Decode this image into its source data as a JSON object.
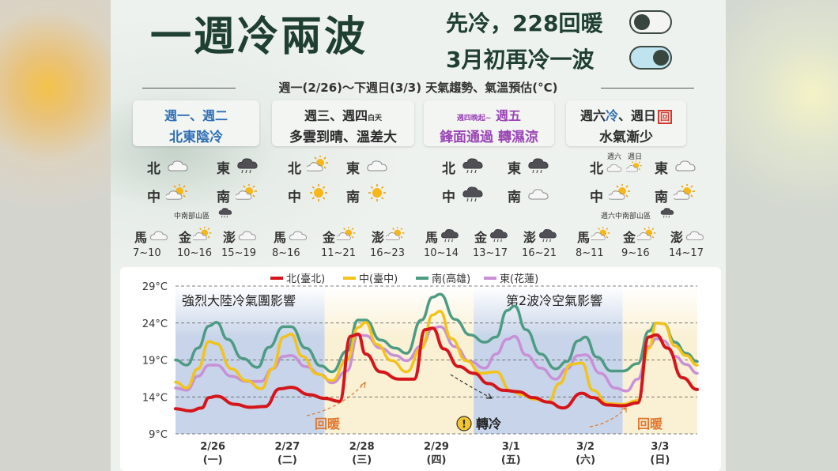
{
  "header": {
    "title": "一週冷兩波",
    "line1": "先冷，228回暖",
    "line2": "3月初再冷一波",
    "subtitle": "週一(2/26)～下週日(3/3) 天氣趨勢、氣溫預估(°C)"
  },
  "periods": [
    {
      "days": "週一、週二",
      "desc": "北東陰冷",
      "forecast": [
        {
          "region": "北",
          "icon": "cloud-icon"
        },
        {
          "region": "東",
          "icon": "rain-cloud-icon"
        },
        {
          "region": "中",
          "icon": "sun-cloud-icon"
        },
        {
          "region": "南",
          "icon": "sun-cloud-icon"
        }
      ],
      "note": {
        "text": "中南部山區",
        "icon": "rain-cloud-icon"
      },
      "islands": [
        {
          "name": "馬",
          "range": "7~10",
          "icon": "cloud-icon"
        },
        {
          "name": "金",
          "range": "10~16",
          "icon": "sun-cloud-icon"
        },
        {
          "name": "澎",
          "range": "15~19",
          "icon": "cloud-icon"
        }
      ]
    },
    {
      "days": "週三、週四",
      "days_suffix": "白天",
      "desc": "多雲到晴、溫差大",
      "forecast": [
        {
          "region": "北",
          "icon": "sun-cloud-icon"
        },
        {
          "region": "東",
          "icon": "cloud-icon"
        },
        {
          "region": "中",
          "icon": "sun-icon"
        },
        {
          "region": "南",
          "icon": "sun-icon"
        }
      ],
      "islands": [
        {
          "name": "馬",
          "range": "8~16",
          "icon": "cloud-icon"
        },
        {
          "name": "金",
          "range": "11~21",
          "icon": "sun-cloud-icon"
        },
        {
          "name": "澎",
          "range": "16~23",
          "icon": "sun-cloud-icon"
        }
      ]
    },
    {
      "days_prefix": "週四晚起~",
      "days": "週五",
      "desc_a": "鋒面通過",
      "desc_b": "轉濕涼",
      "forecast": [
        {
          "region": "北",
          "icon": "rain-cloud-icon"
        },
        {
          "region": "東",
          "icon": "rain-cloud-icon"
        },
        {
          "region": "中",
          "icon": "rain-cloud-icon"
        },
        {
          "region": "南",
          "icon": "cloud-icon"
        }
      ],
      "islands": [
        {
          "name": "馬",
          "range": "10~14",
          "icon": "rain-cloud-icon"
        },
        {
          "name": "金",
          "range": "13~17",
          "icon": "rain-cloud-icon"
        },
        {
          "name": "澎",
          "range": "16~21",
          "icon": "rain-cloud-icon"
        }
      ]
    },
    {
      "days_a": "週六",
      "days_a_suffix": "冷",
      "days_b": "週日",
      "days_b_suffix": "回",
      "desc": "水氣漸少",
      "forecast": [
        {
          "region": "北",
          "icon": "cloud-icon",
          "icon2": "sun-cloud-icon",
          "sub1": "週六",
          "sub2": "週日"
        },
        {
          "region": "東",
          "icon": "cloud-icon"
        },
        {
          "region": "中",
          "icon": "sun-cloud-icon"
        },
        {
          "region": "南",
          "icon": "sun-cloud-icon"
        }
      ],
      "note": {
        "text": "週六中南部山區",
        "icon": "rain-cloud-icon"
      },
      "islands": [
        {
          "name": "馬",
          "range": "8~11",
          "icon": "sun-cloud-icon"
        },
        {
          "name": "金",
          "range": "9~16",
          "icon": "sun-cloud-icon"
        },
        {
          "name": "澎",
          "range": "14~17",
          "icon": "cloud-icon"
        }
      ]
    }
  ],
  "chart_data": {
    "type": "line",
    "ylim": [
      9,
      29
    ],
    "yticks": [
      "29°C",
      "24°C",
      "19°C",
      "14°C",
      "9°C"
    ],
    "ytick_values": [
      29,
      24,
      19,
      14,
      9
    ],
    "categories": [
      "2/26",
      "2/27",
      "2/28",
      "2/29",
      "3/1",
      "3/2",
      "3/3"
    ],
    "weekdays": [
      "(一)",
      "(二)",
      "(三)",
      "(四)",
      "(五)",
      "(六)",
      "(日)"
    ],
    "x_range": [
      0,
      7
    ],
    "annotations": {
      "period1": "強烈大陸冷氣團影響",
      "period2": "第2波冷空氣影響",
      "warm1": "回暖",
      "cool": "轉冷",
      "cool_mark": "!",
      "warm2": "回暖"
    },
    "series": [
      {
        "name": "北(臺北)",
        "color": "#d4161b",
        "points": [
          [
            0,
            12.4
          ],
          [
            0.2,
            12.1
          ],
          [
            0.35,
            12.5
          ],
          [
            0.45,
            13.9
          ],
          [
            0.55,
            14.1
          ],
          [
            0.8,
            13
          ],
          [
            1,
            12.6
          ],
          [
            1.2,
            12.7
          ],
          [
            1.4,
            15.1
          ],
          [
            1.55,
            15.3
          ],
          [
            1.8,
            14.3
          ],
          [
            2,
            13.8
          ],
          [
            2.2,
            13.4
          ],
          [
            2.35,
            22.2
          ],
          [
            2.45,
            22.5
          ],
          [
            2.55,
            19.8
          ],
          [
            2.75,
            17.4
          ],
          [
            3,
            16.4
          ],
          [
            3.2,
            16.4
          ],
          [
            3.35,
            23.1
          ],
          [
            3.45,
            23.3
          ],
          [
            3.6,
            20.5
          ],
          [
            3.8,
            18.1
          ],
          [
            4,
            17.2
          ],
          [
            4.2,
            15.8
          ],
          [
            4.4,
            14.9
          ],
          [
            4.6,
            14.7
          ],
          [
            4.8,
            13.9
          ],
          [
            5,
            13.3
          ],
          [
            5.2,
            12.5
          ],
          [
            5.45,
            14.5
          ],
          [
            5.6,
            13.9
          ],
          [
            5.8,
            12.9
          ],
          [
            6,
            12.8
          ],
          [
            6.2,
            13.2
          ],
          [
            6.35,
            22.1
          ],
          [
            6.45,
            22.4
          ],
          [
            6.6,
            20.6
          ],
          [
            6.8,
            16.6
          ],
          [
            7,
            15
          ]
        ]
      },
      {
        "name": "中(臺中)",
        "color": "#f2c31a",
        "points": [
          [
            0,
            16
          ],
          [
            0.15,
            15.2
          ],
          [
            0.3,
            17.8
          ],
          [
            0.45,
            21.5
          ],
          [
            0.55,
            21.2
          ],
          [
            0.75,
            17.8
          ],
          [
            0.95,
            16.2
          ],
          [
            1.15,
            15.1
          ],
          [
            1.3,
            17.8
          ],
          [
            1.45,
            22.1
          ],
          [
            1.55,
            22.5
          ],
          [
            1.7,
            19.5
          ],
          [
            1.9,
            17.1
          ],
          [
            2.1,
            16.2
          ],
          [
            2.3,
            19
          ],
          [
            2.45,
            23.4
          ],
          [
            2.55,
            24.1
          ],
          [
            2.7,
            21.1
          ],
          [
            2.9,
            18.9
          ],
          [
            3.1,
            17.4
          ],
          [
            3.3,
            20.6
          ],
          [
            3.45,
            25.1
          ],
          [
            3.55,
            25.6
          ],
          [
            3.7,
            21.9
          ],
          [
            3.9,
            18.9
          ],
          [
            4.1,
            17.2
          ],
          [
            4.3,
            17.4
          ],
          [
            4.5,
            14.8
          ],
          [
            4.65,
            14.3
          ],
          [
            4.8,
            13.7
          ],
          [
            5,
            13.3
          ],
          [
            5.15,
            15.8
          ],
          [
            5.3,
            18.4
          ],
          [
            5.45,
            18.6
          ],
          [
            5.6,
            14.9
          ],
          [
            5.8,
            13.1
          ],
          [
            6,
            13
          ],
          [
            6.2,
            13.5
          ],
          [
            6.35,
            20.6
          ],
          [
            6.45,
            24
          ],
          [
            6.55,
            23.9
          ],
          [
            6.7,
            20.9
          ],
          [
            6.85,
            19.6
          ],
          [
            7,
            18.3
          ]
        ]
      },
      {
        "name": "南(高雄)",
        "color": "#4e9b84",
        "points": [
          [
            0,
            19
          ],
          [
            0.15,
            18.3
          ],
          [
            0.3,
            20.6
          ],
          [
            0.45,
            23.6
          ],
          [
            0.55,
            24.1
          ],
          [
            0.7,
            21.8
          ],
          [
            0.9,
            19.2
          ],
          [
            1.1,
            18
          ],
          [
            1.25,
            20.7
          ],
          [
            1.45,
            23.5
          ],
          [
            1.55,
            23.5
          ],
          [
            1.75,
            20.6
          ],
          [
            1.95,
            18.2
          ],
          [
            2.1,
            17.4
          ],
          [
            2.3,
            20.2
          ],
          [
            2.45,
            24.4
          ],
          [
            2.55,
            24.4
          ],
          [
            2.75,
            21.7
          ],
          [
            2.95,
            20.6
          ],
          [
            3.1,
            19.9
          ],
          [
            3.3,
            24.4
          ],
          [
            3.45,
            27.5
          ],
          [
            3.55,
            27.9
          ],
          [
            3.75,
            24.5
          ],
          [
            3.95,
            22.4
          ],
          [
            4.15,
            21.4
          ],
          [
            4.3,
            22.1
          ],
          [
            4.45,
            25.7
          ],
          [
            4.55,
            26.3
          ],
          [
            4.7,
            23.1
          ],
          [
            4.9,
            19.8
          ],
          [
            5.1,
            17.8
          ],
          [
            5.25,
            18.8
          ],
          [
            5.4,
            21.6
          ],
          [
            5.5,
            22.1
          ],
          [
            5.65,
            19.4
          ],
          [
            5.85,
            17.5
          ],
          [
            6,
            17.5
          ],
          [
            6.2,
            18.5
          ],
          [
            6.35,
            22.9
          ],
          [
            6.45,
            24
          ],
          [
            6.55,
            23.9
          ],
          [
            6.7,
            21.4
          ],
          [
            6.85,
            19.9
          ],
          [
            7,
            18.8
          ]
        ]
      },
      {
        "name": "東(花蓮)",
        "color": "#c890d8",
        "points": [
          [
            0,
            15.2
          ],
          [
            0.15,
            14.9
          ],
          [
            0.3,
            16.8
          ],
          [
            0.45,
            18.3
          ],
          [
            0.55,
            18.3
          ],
          [
            0.75,
            16.8
          ],
          [
            0.95,
            16.1
          ],
          [
            1.15,
            16.1
          ],
          [
            1.3,
            17.8
          ],
          [
            1.45,
            19.5
          ],
          [
            1.55,
            19.6
          ],
          [
            1.75,
            18.1
          ],
          [
            1.95,
            17
          ],
          [
            2.1,
            15.9
          ],
          [
            2.3,
            17.5
          ],
          [
            2.45,
            22.4
          ],
          [
            2.55,
            22.3
          ],
          [
            2.75,
            20.6
          ],
          [
            2.95,
            19.6
          ],
          [
            3.1,
            18.9
          ],
          [
            3.3,
            20.9
          ],
          [
            3.45,
            23.3
          ],
          [
            3.55,
            23.5
          ],
          [
            3.75,
            20.8
          ],
          [
            3.95,
            18.8
          ],
          [
            4.15,
            17.9
          ],
          [
            4.3,
            19.8
          ],
          [
            4.45,
            21.8
          ],
          [
            4.55,
            22.2
          ],
          [
            4.7,
            19.7
          ],
          [
            4.9,
            17.9
          ],
          [
            5.1,
            16.4
          ],
          [
            5.25,
            17.8
          ],
          [
            5.4,
            19.6
          ],
          [
            5.5,
            19.7
          ],
          [
            5.7,
            17.2
          ],
          [
            5.9,
            15.2
          ],
          [
            6.05,
            14.8
          ],
          [
            6.2,
            16.4
          ],
          [
            6.35,
            20.8
          ],
          [
            6.45,
            21.9
          ],
          [
            6.55,
            21.6
          ],
          [
            6.7,
            19.5
          ],
          [
            6.85,
            18.4
          ],
          [
            7,
            17.2
          ]
        ]
      }
    ]
  },
  "colors": {
    "cold_band": "#c7d4e9",
    "warm_band": "#faf0d3",
    "arrow": "#e0772f",
    "title": "#1f3f33"
  }
}
